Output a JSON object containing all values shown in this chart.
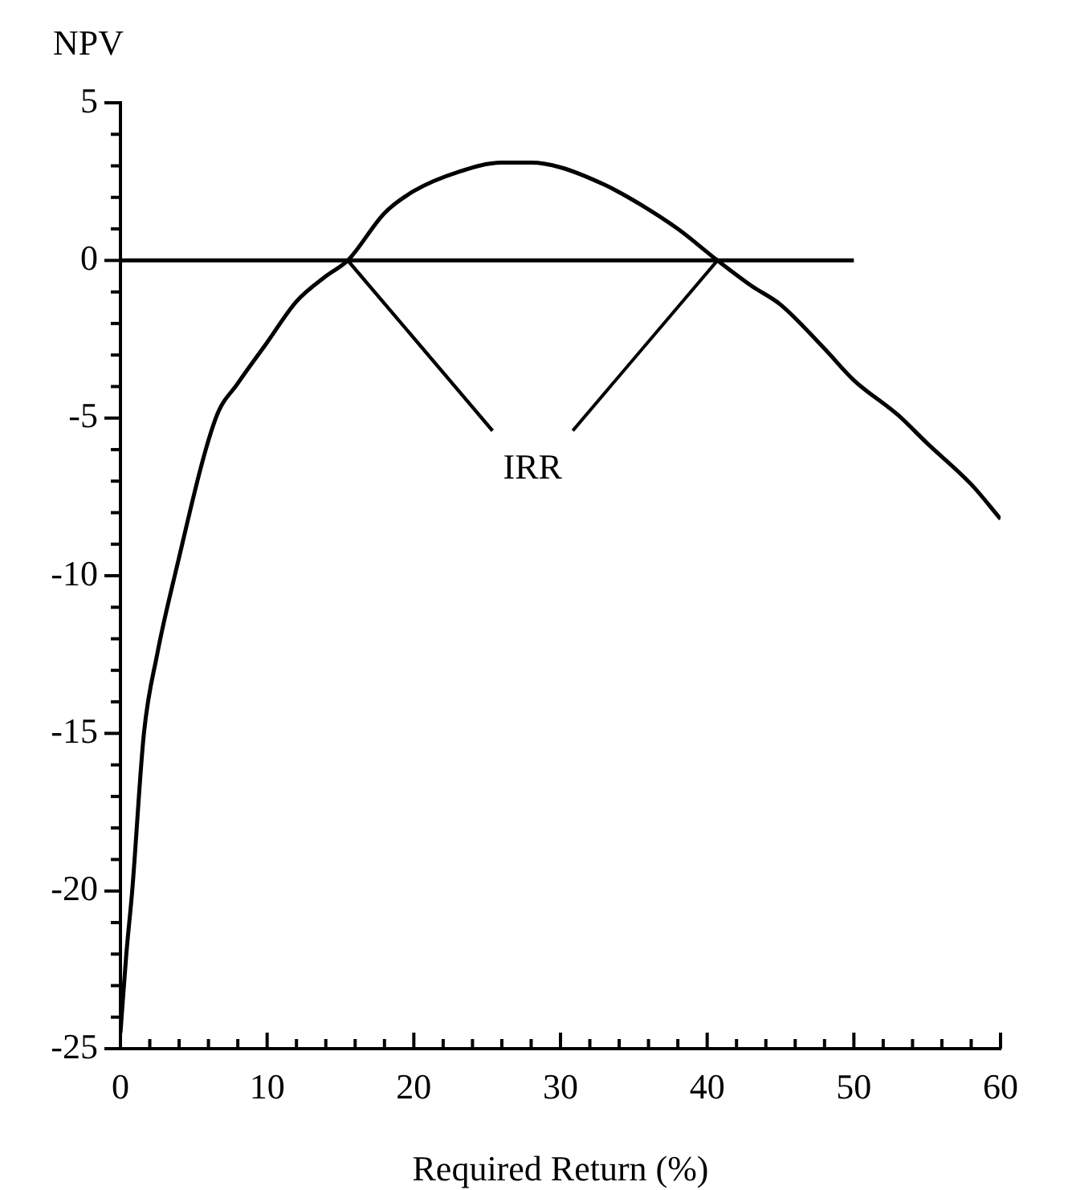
{
  "chart_data": {
    "type": "line",
    "xlabel": "Required Return (%)",
    "ylabel": "NPV",
    "xlim": [
      0,
      60
    ],
    "ylim": [
      -25,
      5
    ],
    "xticks": [
      0,
      {
        "value": 2,
        "label": null
      },
      {
        "value": 4,
        "label": null
      },
      {
        "value": 6,
        "label": null
      },
      {
        "value": 8,
        "label": null
      },
      10,
      {
        "value": 12,
        "label": null
      },
      {
        "value": 14,
        "label": null
      },
      {
        "value": 16,
        "label": null
      },
      {
        "value": 18,
        "label": null
      },
      20,
      {
        "value": 22,
        "label": null
      },
      {
        "value": 24,
        "label": null
      },
      {
        "value": 26,
        "label": null
      },
      {
        "value": 28,
        "label": null
      },
      30,
      {
        "value": 32,
        "label": null
      },
      {
        "value": 34,
        "label": null
      },
      {
        "value": 36,
        "label": null
      },
      {
        "value": 38,
        "label": null
      },
      40,
      {
        "value": 42,
        "label": null
      },
      {
        "value": 44,
        "label": null
      },
      {
        "value": 46,
        "label": null
      },
      {
        "value": 48,
        "label": null
      },
      50,
      {
        "value": 52,
        "label": null
      },
      {
        "value": 54,
        "label": null
      },
      {
        "value": 56,
        "label": null
      },
      {
        "value": 58,
        "label": null
      },
      60
    ],
    "yticks": [
      -25,
      {
        "value": -24,
        "label": null
      },
      {
        "value": -23,
        "label": null
      },
      {
        "value": -22,
        "label": null
      },
      {
        "value": -21,
        "label": null
      },
      -20,
      {
        "value": -19,
        "label": null
      },
      {
        "value": -18,
        "label": null
      },
      {
        "value": -17,
        "label": null
      },
      {
        "value": -16,
        "label": null
      },
      -15,
      {
        "value": -14,
        "label": null
      },
      {
        "value": -13,
        "label": null
      },
      {
        "value": -12,
        "label": null
      },
      {
        "value": -11,
        "label": null
      },
      -10,
      {
        "value": -9,
        "label": null
      },
      {
        "value": -8,
        "label": null
      },
      {
        "value": -7,
        "label": null
      },
      {
        "value": -6,
        "label": null
      },
      -5,
      {
        "value": -4,
        "label": null
      },
      {
        "value": -3,
        "label": null
      },
      {
        "value": -2,
        "label": null
      },
      {
        "value": -1,
        "label": null
      },
      0,
      {
        "value": 1,
        "label": null
      },
      {
        "value": 2,
        "label": null
      },
      {
        "value": 3,
        "label": null
      },
      {
        "value": 4,
        "label": null
      },
      5
    ],
    "grid": false,
    "legend": false,
    "marker": "none",
    "line_style": "solid",
    "series": [
      {
        "color": "#000000",
        "x": [
          0,
          0.4,
          0.8,
          1.6,
          2.5,
          3.7,
          6.5,
          8,
          10,
          12,
          14,
          15.5,
          18,
          20,
          23,
          26,
          28,
          30,
          33,
          35,
          38,
          40.7,
          43,
          45,
          48,
          50,
          53,
          55,
          58,
          60
        ],
        "values": [
          -24.5,
          -22,
          -20,
          -15,
          -12.5,
          -10,
          -5,
          -3.9,
          -2.6,
          -1.3,
          -0.5,
          0,
          1.5,
          2.2,
          2.8,
          3.1,
          3.1,
          2.95,
          2.4,
          1.9,
          1,
          0,
          -0.8,
          -1.4,
          -2.8,
          -3.8,
          -4.9,
          -5.8,
          -7.1,
          -8.2
        ]
      },
      {
        "color": "#000000",
        "x": [
          0,
          50
        ],
        "values": [
          0,
          0
        ]
      }
    ],
    "annotations": [
      {
        "text": "IRR",
        "x": 15.5,
        "y": 0
      }
    ]
  }
}
